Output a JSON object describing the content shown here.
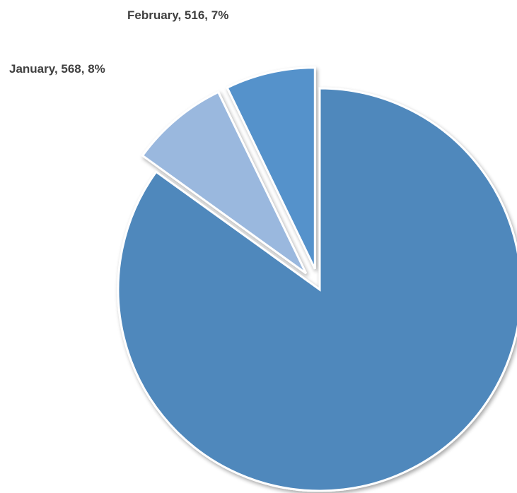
{
  "chart_data": {
    "type": "pie",
    "slices": [
      {
        "label": "January",
        "value": 568,
        "percent": "8%",
        "display": "January, 568, 8%",
        "color": "#9ab8de",
        "exploded": true
      },
      {
        "label": "February",
        "value": 516,
        "percent": "7%",
        "display": "February, 516, 7%",
        "color": "#5592cb",
        "exploded": true
      },
      {
        "label": "",
        "value": 6116,
        "percent": "85%",
        "display": "",
        "color": "#4f88bc",
        "exploded": false
      }
    ],
    "legend": "none"
  }
}
